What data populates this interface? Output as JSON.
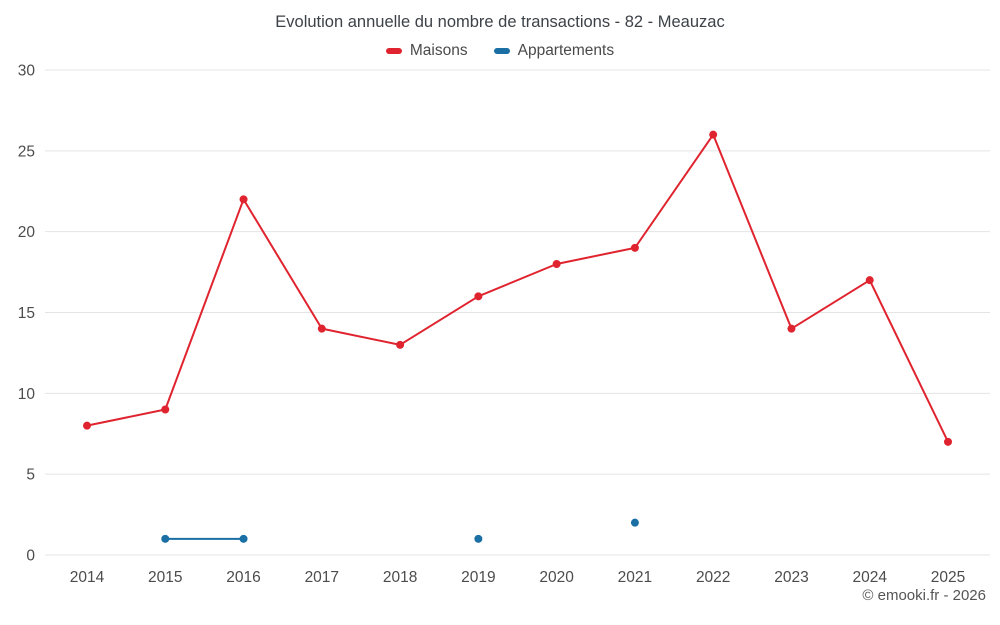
{
  "header": {
    "title": "Evolution annuelle du nombre de transactions - 82 - Meauzac"
  },
  "chart_data": {
    "type": "line",
    "title": "Evolution annuelle du nombre de transactions - 82 - Meauzac",
    "categories": [
      "2014",
      "2015",
      "2016",
      "2017",
      "2018",
      "2019",
      "2020",
      "2021",
      "2022",
      "2023",
      "2024",
      "2025"
    ],
    "series": [
      {
        "name": "Maisons",
        "color": "#e0242f",
        "values": [
          8,
          9,
          22,
          14,
          13,
          16,
          18,
          19,
          26,
          14,
          17,
          7
        ]
      },
      {
        "name": "Appartements",
        "color": "#1a6fa5",
        "values": [
          null,
          1,
          1,
          null,
          null,
          1,
          null,
          2,
          null,
          null,
          null,
          null
        ]
      }
    ],
    "ylim": [
      0,
      30
    ],
    "yticks": [
      0,
      5,
      10,
      15,
      20,
      25,
      30
    ],
    "grid": "horizontal",
    "legend_position": "top",
    "colors": {
      "grid": "#e4e4e4",
      "axis_text": "#4c4c4c",
      "title_text": "#3c4248"
    }
  },
  "footer": {
    "copyright": "© emooki.fr - 2026"
  }
}
